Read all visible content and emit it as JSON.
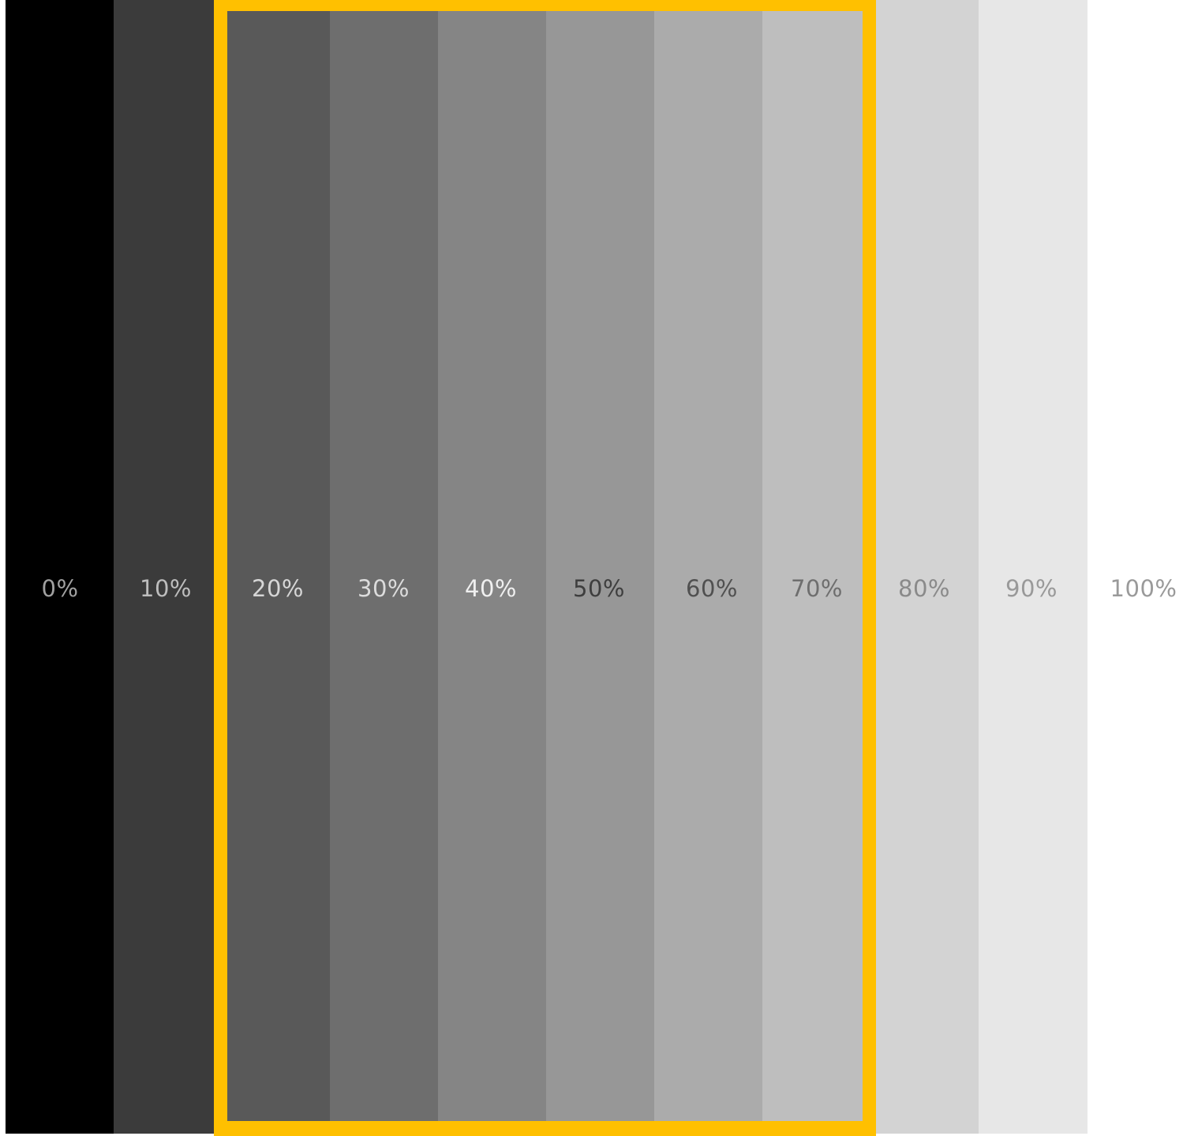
{
  "swatches": [
    {
      "label": "0%",
      "fill": "#000000",
      "text_color": "#a0a0a0"
    },
    {
      "label": "10%",
      "fill": "#3b3b3b",
      "text_color": "#bdbdbd"
    },
    {
      "label": "20%",
      "fill": "#595959",
      "text_color": "#d6d6d6"
    },
    {
      "label": "30%",
      "fill": "#6e6e6e",
      "text_color": "#dcdcdc"
    },
    {
      "label": "40%",
      "fill": "#858585",
      "text_color": "#f0f0f0"
    },
    {
      "label": "50%",
      "fill": "#979797",
      "text_color": "#3e3e3e"
    },
    {
      "label": "60%",
      "fill": "#ababab",
      "text_color": "#505050"
    },
    {
      "label": "70%",
      "fill": "#bebebe",
      "text_color": "#6e6e6e"
    },
    {
      "label": "80%",
      "fill": "#d3d3d3",
      "text_color": "#8a8a8a"
    },
    {
      "label": "90%",
      "fill": "#e7e7e7",
      "text_color": "#999999"
    },
    {
      "label": "100%",
      "fill": "#ffffff",
      "text_color": "#9a9a9a"
    }
  ],
  "highlight": {
    "first_label": "20%",
    "last_label": "70%",
    "color": "#ffc000"
  }
}
